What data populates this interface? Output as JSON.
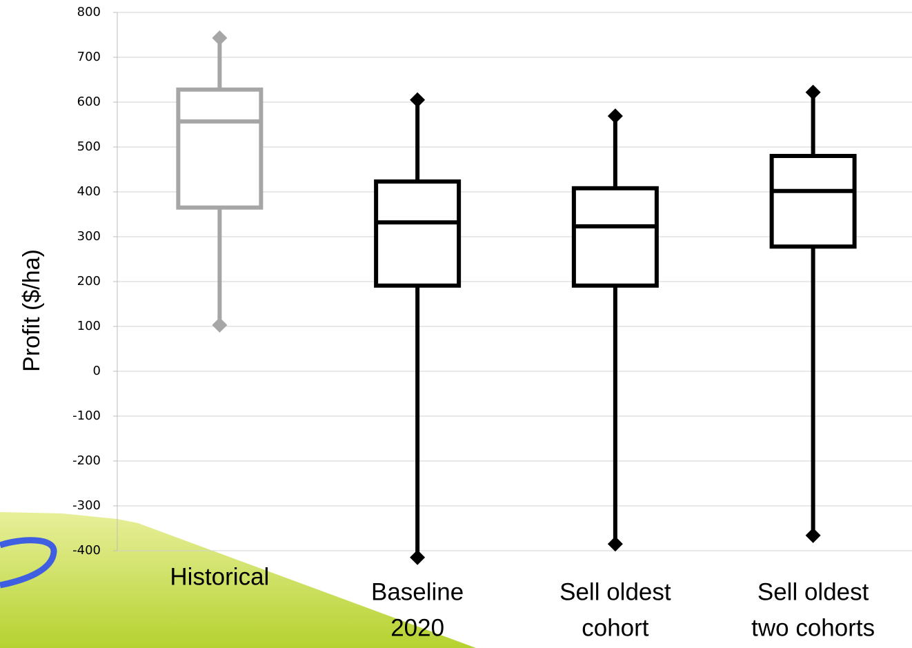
{
  "chart_data": {
    "type": "box",
    "ylabel": "Profit ($/ha)",
    "categories": [
      [
        "Historical"
      ],
      [
        "Baseline",
        "2020"
      ],
      [
        "Sell oldest",
        "cohort"
      ],
      [
        "Sell oldest",
        "two cohorts"
      ]
    ],
    "colors": [
      "#a6a6a6",
      "#000000",
      "#000000",
      "#000000"
    ],
    "boxes": [
      {
        "min": 103,
        "q1": 365,
        "median": 557,
        "q3": 628,
        "max": 743
      },
      {
        "min": -415,
        "q1": 191,
        "median": 332,
        "q3": 423,
        "max": 605
      },
      {
        "min": -385,
        "q1": 191,
        "median": 323,
        "q3": 408,
        "max": 569
      },
      {
        "min": -366,
        "q1": 278,
        "median": 402,
        "q3": 480,
        "max": 622
      }
    ],
    "ylim": [
      -400,
      800
    ],
    "yticks": [
      -400,
      -300,
      -200,
      -100,
      0,
      100,
      200,
      300,
      400,
      500,
      600,
      700,
      800
    ],
    "grid": true
  }
}
